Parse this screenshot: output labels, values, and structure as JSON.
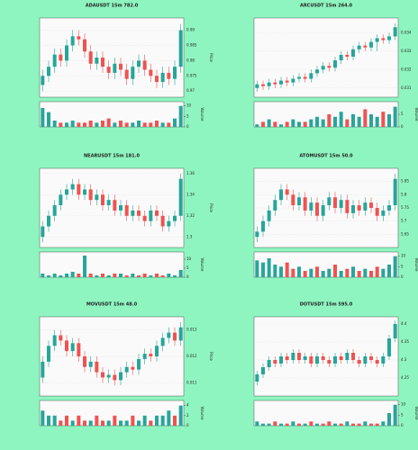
{
  "chart_data": [
    {
      "type": "candlestick",
      "title": "ADAUSDT 15m 782.0",
      "ylabel": "Price",
      "volume_label": "Volume",
      "up_color": "#26a69a",
      "down_color": "#ef5350",
      "open": [
        0.972,
        0.975,
        0.978,
        0.982,
        0.98,
        0.985,
        0.988,
        0.987,
        0.983,
        0.979,
        0.981,
        0.978,
        0.976,
        0.979,
        0.977,
        0.974,
        0.978,
        0.98,
        0.977,
        0.975,
        0.973,
        0.976,
        0.974,
        0.978
      ],
      "high": [
        0.977,
        0.98,
        0.984,
        0.984,
        0.987,
        0.99,
        0.99,
        0.989,
        0.985,
        0.983,
        0.983,
        0.98,
        0.981,
        0.981,
        0.979,
        0.98,
        0.982,
        0.982,
        0.979,
        0.977,
        0.978,
        0.978,
        0.98,
        0.992
      ],
      "low": [
        0.97,
        0.973,
        0.976,
        0.978,
        0.978,
        0.983,
        0.985,
        0.981,
        0.977,
        0.977,
        0.976,
        0.974,
        0.974,
        0.975,
        0.972,
        0.972,
        0.976,
        0.975,
        0.973,
        0.971,
        0.971,
        0.972,
        0.972,
        0.976
      ],
      "close": [
        0.975,
        0.978,
        0.982,
        0.98,
        0.985,
        0.988,
        0.987,
        0.983,
        0.979,
        0.981,
        0.978,
        0.976,
        0.979,
        0.977,
        0.974,
        0.978,
        0.98,
        0.977,
        0.975,
        0.973,
        0.976,
        0.974,
        0.978,
        0.99
      ],
      "volume": [
        9,
        7,
        3,
        2,
        2,
        3,
        2,
        2,
        3,
        2,
        3,
        4,
        2,
        3,
        2,
        2,
        3,
        2,
        2,
        3,
        2,
        2,
        4,
        10
      ],
      "ylim": [
        0.968,
        0.994
      ],
      "yticks": [
        0.97,
        0.975,
        0.98,
        0.985,
        0.99
      ],
      "volume_lim": [
        0,
        12
      ],
      "volume_ticks": [
        0,
        5,
        10
      ]
    },
    {
      "type": "candlestick",
      "title": "ARCUSDT 15m 264.0",
      "ylabel": "Price",
      "volume_label": "Volume",
      "up_color": "#26a69a",
      "down_color": "#ef5350",
      "open": [
        0.031,
        0.0312,
        0.0311,
        0.0313,
        0.0312,
        0.0314,
        0.0313,
        0.0315,
        0.0316,
        0.0315,
        0.0318,
        0.032,
        0.0322,
        0.0321,
        0.0325,
        0.0328,
        0.0327,
        0.0331,
        0.0333,
        0.0332,
        0.0335,
        0.0337,
        0.0336,
        0.0338
      ],
      "high": [
        0.0314,
        0.0314,
        0.0315,
        0.0315,
        0.0316,
        0.0316,
        0.0317,
        0.0318,
        0.0318,
        0.032,
        0.0322,
        0.0324,
        0.0324,
        0.0327,
        0.033,
        0.033,
        0.0333,
        0.0335,
        0.0335,
        0.0337,
        0.0339,
        0.0339,
        0.034,
        0.0345
      ],
      "low": [
        0.0308,
        0.0309,
        0.0309,
        0.031,
        0.031,
        0.0311,
        0.0311,
        0.0313,
        0.0313,
        0.0313,
        0.0316,
        0.0318,
        0.0319,
        0.0319,
        0.0323,
        0.0325,
        0.0325,
        0.0329,
        0.033,
        0.033,
        0.033,
        0.0334,
        0.0334,
        0.0336
      ],
      "close": [
        0.0312,
        0.0311,
        0.0313,
        0.0312,
        0.0314,
        0.0313,
        0.0315,
        0.0316,
        0.0315,
        0.0318,
        0.032,
        0.0322,
        0.0321,
        0.0325,
        0.0328,
        0.0327,
        0.0331,
        0.0333,
        0.0332,
        0.0335,
        0.0337,
        0.0336,
        0.0338,
        0.0343
      ],
      "volume": [
        1,
        2,
        3,
        2,
        1,
        2,
        3,
        2,
        2,
        3,
        4,
        3,
        5,
        4,
        6,
        3,
        5,
        4,
        7,
        5,
        4,
        6,
        5,
        8
      ],
      "ylim": [
        0.0305,
        0.0348
      ],
      "yticks": [
        0.031,
        0.032,
        0.033,
        0.034
      ],
      "volume_lim": [
        0,
        10
      ],
      "volume_ticks": [
        0,
        5
      ]
    },
    {
      "type": "candlestick",
      "title": "NEARUSDT 15m 181.0",
      "ylabel": "Price",
      "volume_label": "Volume",
      "up_color": "#26a69a",
      "down_color": "#ef5350",
      "open": [
        1.3,
        1.31,
        1.32,
        1.33,
        1.34,
        1.345,
        1.35,
        1.34,
        1.345,
        1.335,
        1.34,
        1.33,
        1.335,
        1.325,
        1.33,
        1.32,
        1.325,
        1.32,
        1.315,
        1.325,
        1.32,
        1.31,
        1.315,
        1.32
      ],
      "high": [
        1.315,
        1.325,
        1.335,
        1.345,
        1.35,
        1.355,
        1.355,
        1.35,
        1.35,
        1.345,
        1.345,
        1.34,
        1.34,
        1.335,
        1.335,
        1.33,
        1.33,
        1.325,
        1.33,
        1.33,
        1.325,
        1.32,
        1.325,
        1.36
      ],
      "low": [
        1.295,
        1.305,
        1.315,
        1.325,
        1.335,
        1.34,
        1.335,
        1.335,
        1.33,
        1.33,
        1.325,
        1.325,
        1.32,
        1.32,
        1.315,
        1.315,
        1.315,
        1.31,
        1.31,
        1.315,
        1.305,
        1.305,
        1.31,
        1.315
      ],
      "close": [
        1.31,
        1.32,
        1.33,
        1.34,
        1.345,
        1.35,
        1.34,
        1.345,
        1.335,
        1.34,
        1.33,
        1.335,
        1.325,
        1.33,
        1.32,
        1.325,
        1.32,
        1.315,
        1.325,
        1.32,
        1.31,
        1.315,
        1.32,
        1.355
      ],
      "volume": [
        2,
        1,
        2,
        1,
        2,
        3,
        2,
        12,
        2,
        1,
        2,
        1,
        2,
        2,
        1,
        2,
        1,
        2,
        1,
        2,
        1,
        2,
        1,
        4
      ],
      "ylim": [
        1.29,
        1.365
      ],
      "yticks": [
        1.3,
        1.32,
        1.34,
        1.36
      ],
      "volume_lim": [
        0,
        14
      ],
      "volume_ticks": [
        0,
        5,
        10
      ]
    },
    {
      "type": "candlestick",
      "title": "ATOMUSDT 15m 50.0",
      "ylabel": "Price",
      "volume_label": "Volume",
      "up_color": "#26a69a",
      "down_color": "#ef5350",
      "open": [
        5.64,
        5.66,
        5.7,
        5.74,
        5.78,
        5.82,
        5.8,
        5.76,
        5.79,
        5.74,
        5.77,
        5.72,
        5.76,
        5.79,
        5.75,
        5.78,
        5.73,
        5.76,
        5.74,
        5.77,
        5.75,
        5.72,
        5.74,
        5.76
      ],
      "high": [
        5.68,
        5.72,
        5.76,
        5.8,
        5.84,
        5.84,
        5.82,
        5.81,
        5.81,
        5.79,
        5.79,
        5.78,
        5.81,
        5.81,
        5.8,
        5.8,
        5.78,
        5.78,
        5.79,
        5.79,
        5.77,
        5.76,
        5.78,
        5.88
      ],
      "low": [
        5.62,
        5.64,
        5.68,
        5.72,
        5.76,
        5.78,
        5.74,
        5.74,
        5.72,
        5.72,
        5.7,
        5.7,
        5.74,
        5.73,
        5.73,
        5.71,
        5.71,
        5.72,
        5.72,
        5.73,
        5.7,
        5.7,
        5.72,
        5.74
      ],
      "close": [
        5.66,
        5.7,
        5.74,
        5.78,
        5.82,
        5.8,
        5.76,
        5.79,
        5.74,
        5.77,
        5.72,
        5.76,
        5.79,
        5.75,
        5.78,
        5.73,
        5.76,
        5.74,
        5.77,
        5.75,
        5.72,
        5.74,
        5.76,
        5.86
      ],
      "volume": [
        8,
        7,
        9,
        6,
        5,
        7,
        4,
        5,
        3,
        4,
        5,
        3,
        4,
        6,
        3,
        4,
        5,
        3,
        4,
        3,
        5,
        4,
        6,
        10
      ],
      "ylim": [
        5.6,
        5.9
      ],
      "yticks": [
        5.65,
        5.7,
        5.75,
        5.8,
        5.85
      ],
      "volume_lim": [
        0,
        12
      ],
      "volume_ticks": [
        0,
        5,
        10
      ]
    },
    {
      "type": "candlestick",
      "title": "MOVUSDT 15m 48.0",
      "ylabel": "Price",
      "volume_label": "Volume",
      "up_color": "#26a69a",
      "down_color": "#ef5350",
      "open": [
        0.0112,
        0.0118,
        0.0124,
        0.0128,
        0.0126,
        0.0122,
        0.0125,
        0.012,
        0.0116,
        0.0118,
        0.0114,
        0.0112,
        0.0113,
        0.0111,
        0.0114,
        0.0116,
        0.0115,
        0.0119,
        0.0121,
        0.012,
        0.0124,
        0.0127,
        0.0129,
        0.0126
      ],
      "high": [
        0.012,
        0.0126,
        0.013,
        0.013,
        0.0128,
        0.0127,
        0.0127,
        0.0122,
        0.012,
        0.012,
        0.0116,
        0.0115,
        0.0115,
        0.0116,
        0.0118,
        0.0118,
        0.0121,
        0.0123,
        0.0123,
        0.0126,
        0.0129,
        0.0131,
        0.0131,
        0.0133
      ],
      "low": [
        0.011,
        0.0116,
        0.0122,
        0.0124,
        0.012,
        0.012,
        0.0118,
        0.0114,
        0.0114,
        0.0112,
        0.011,
        0.011,
        0.0109,
        0.0109,
        0.0112,
        0.0113,
        0.0113,
        0.0117,
        0.0118,
        0.0118,
        0.0122,
        0.0125,
        0.0124,
        0.0124
      ],
      "close": [
        0.0118,
        0.0124,
        0.0128,
        0.0126,
        0.0122,
        0.0125,
        0.012,
        0.0116,
        0.0118,
        0.0114,
        0.0112,
        0.0113,
        0.0111,
        0.0114,
        0.0116,
        0.0115,
        0.0119,
        0.0121,
        0.012,
        0.0124,
        0.0127,
        0.0129,
        0.0126,
        0.0131
      ],
      "volume": [
        3,
        2,
        2,
        1,
        2,
        1,
        2,
        1,
        1,
        2,
        1,
        1,
        2,
        1,
        1,
        2,
        1,
        2,
        1,
        2,
        2,
        3,
        2,
        4
      ],
      "ylim": [
        0.0105,
        0.0135
      ],
      "yticks": [
        0.011,
        0.012,
        0.013
      ],
      "volume_lim": [
        0,
        5
      ],
      "volume_ticks": [
        0,
        2,
        4
      ]
    },
    {
      "type": "candlestick",
      "title": "DOTUSDT 15m 595.0",
      "ylabel": "Price",
      "volume_label": "Volume",
      "up_color": "#26a69a",
      "down_color": "#ef5350",
      "open": [
        4.24,
        4.26,
        4.28,
        4.3,
        4.29,
        4.31,
        4.3,
        4.32,
        4.3,
        4.31,
        4.29,
        4.31,
        4.3,
        4.29,
        4.31,
        4.3,
        4.32,
        4.3,
        4.29,
        4.31,
        4.3,
        4.29,
        4.31,
        4.36
      ],
      "high": [
        4.27,
        4.29,
        4.31,
        4.31,
        4.32,
        4.32,
        4.33,
        4.33,
        4.32,
        4.32,
        4.32,
        4.32,
        4.31,
        4.32,
        4.32,
        4.33,
        4.33,
        4.31,
        4.32,
        4.32,
        4.31,
        4.32,
        4.37,
        4.41
      ],
      "low": [
        4.23,
        4.25,
        4.27,
        4.28,
        4.28,
        4.29,
        4.29,
        4.29,
        4.29,
        4.28,
        4.28,
        4.29,
        4.28,
        4.28,
        4.29,
        4.29,
        4.29,
        4.28,
        4.28,
        4.29,
        4.28,
        4.28,
        4.3,
        4.35
      ],
      "close": [
        4.26,
        4.28,
        4.3,
        4.29,
        4.31,
        4.3,
        4.32,
        4.3,
        4.31,
        4.29,
        4.31,
        4.3,
        4.29,
        4.31,
        4.3,
        4.32,
        4.3,
        4.29,
        4.31,
        4.3,
        4.29,
        4.31,
        4.36,
        4.4
      ],
      "volume": [
        2,
        1,
        1,
        2,
        1,
        1,
        2,
        1,
        1,
        2,
        1,
        1,
        2,
        1,
        1,
        2,
        1,
        1,
        2,
        1,
        1,
        2,
        6,
        10
      ],
      "ylim": [
        4.2,
        4.42
      ],
      "yticks": [
        4.25,
        4.3,
        4.35,
        4.4
      ],
      "volume_lim": [
        0,
        12
      ],
      "volume_ticks": [
        0,
        5,
        10
      ]
    }
  ]
}
